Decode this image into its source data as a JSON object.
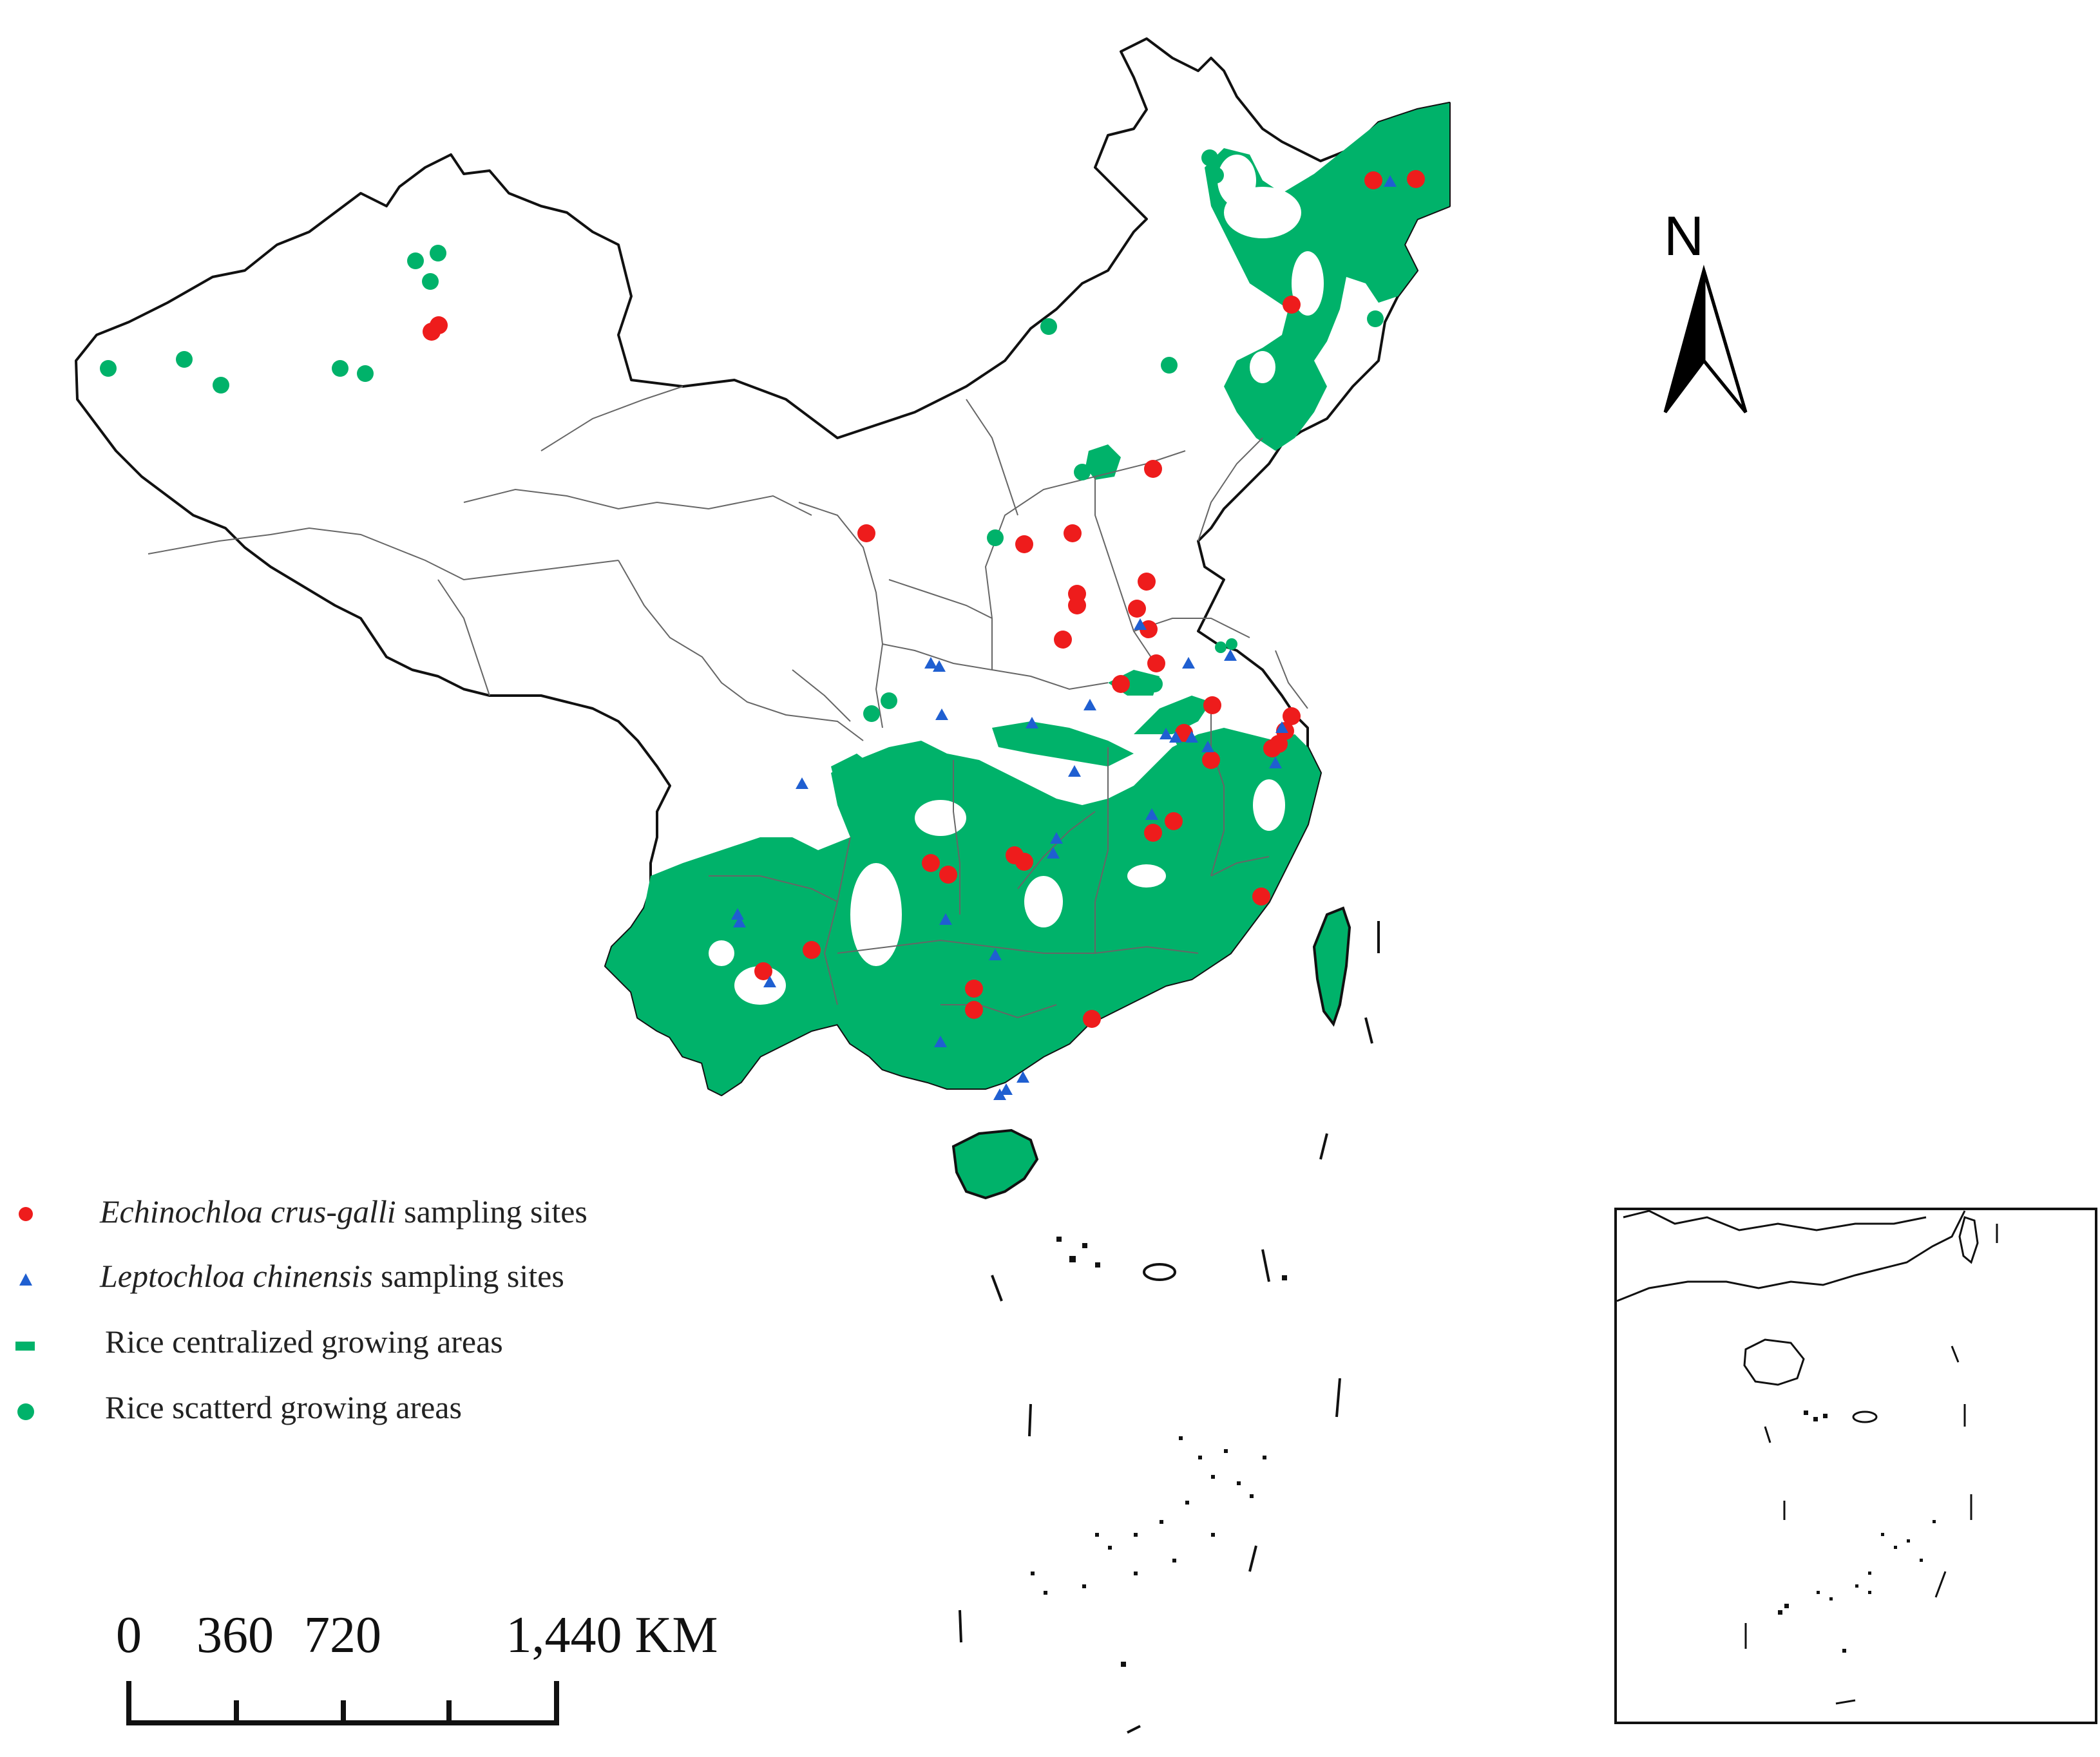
{
  "legend": {
    "items": [
      {
        "species": "Echinochloa crus-galli",
        "suffix": " sampling sites",
        "symbol": "red-circle-icon"
      },
      {
        "species": "Leptochloa chinensis",
        "suffix": " sampling sites",
        "symbol": "blue-triangle-icon"
      },
      {
        "species": "",
        "suffix": "Rice centralized growing areas",
        "symbol": "green-rectangle-icon"
      },
      {
        "species": "",
        "suffix": "Rice scatterd growing areas",
        "symbol": "green-circle-icon"
      }
    ]
  },
  "north_arrow": {
    "label": "N"
  },
  "scale_bar": {
    "ticks": [
      "0",
      "360",
      "720",
      "1,440 KM"
    ]
  },
  "colors": {
    "echinochloa": "#ee1c1c",
    "leptochloa": "#1f5fd1",
    "rice": "#00b26a",
    "border": "#555555"
  }
}
